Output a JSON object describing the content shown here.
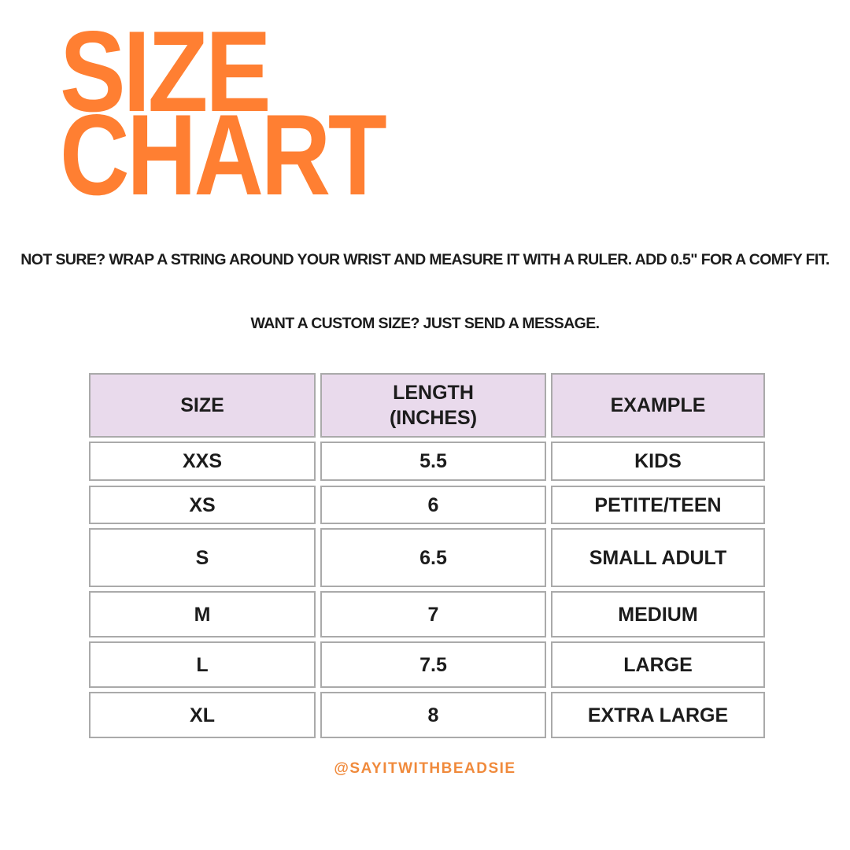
{
  "title": {
    "line1": "SIZE",
    "line2": "CHART",
    "color": "#FF7F32"
  },
  "instructions": {
    "line1": "NOT SURE?  WRAP A STRING AROUND YOUR WRIST AND MEASURE IT WITH A RULER. ADD 0.5\" FOR A COMFY FIT.",
    "line2": "WANT A CUSTOM SIZE? JUST SEND A MESSAGE."
  },
  "table": {
    "headers": [
      "SIZE",
      "LENGTH (INCHES)",
      "EXAMPLE"
    ],
    "header_color": "#E9DAEC",
    "rows": [
      [
        "XXS",
        "5.5",
        "KIDS"
      ],
      [
        "XS",
        "6",
        "PETITE/TEEN"
      ],
      [
        "S",
        "6.5",
        "SMALL ADULT"
      ],
      [
        "M",
        "7",
        "MEDIUM"
      ],
      [
        "L",
        "7.5",
        "LARGE"
      ],
      [
        "XL",
        "8",
        "EXTRA LARGE"
      ]
    ]
  },
  "footer": {
    "handle": "@SAYITWITHBEADSIE"
  }
}
